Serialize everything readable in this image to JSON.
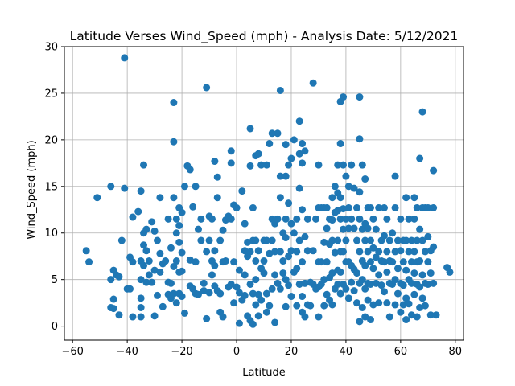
{
  "chart_data": {
    "type": "scatter",
    "title": "Latitude Verses Wind_Speed (mph) - Analysis Date: 5/12/2021",
    "xlabel": "Latitude",
    "ylabel": "Wind_Speed (mph)",
    "xlim": [
      -63,
      83
    ],
    "ylim": [
      -1.5,
      30
    ],
    "xticks": [
      -60,
      -40,
      -20,
      0,
      20,
      40,
      60,
      80
    ],
    "yticks": [
      0,
      5,
      10,
      15,
      20,
      25,
      30
    ],
    "grid": true,
    "marker_color": "#1f77b4",
    "points": [
      [
        -55,
        8.1
      ],
      [
        -54,
        6.9
      ],
      [
        -51,
        13.8
      ],
      [
        -46,
        15
      ],
      [
        -46,
        5
      ],
      [
        -45,
        6
      ],
      [
        -44,
        5.5
      ],
      [
        -45,
        2.9
      ],
      [
        -46,
        2
      ],
      [
        -45,
        1.9
      ],
      [
        -43,
        1.2
      ],
      [
        -43,
        5.3
      ],
      [
        -42,
        9.2
      ],
      [
        -41,
        28.8
      ],
      [
        -41,
        14.8
      ],
      [
        -40,
        4
      ],
      [
        -39,
        4
      ],
      [
        -39,
        7.4
      ],
      [
        -38,
        11.7
      ],
      [
        -38,
        6.9
      ],
      [
        -38,
        1
      ],
      [
        -36,
        12.3
      ],
      [
        -35,
        14.5
      ],
      [
        -35,
        7
      ],
      [
        -35,
        5
      ],
      [
        -35,
        3
      ],
      [
        -35,
        2
      ],
      [
        -35,
        1
      ],
      [
        -34,
        17.3
      ],
      [
        -34,
        10
      ],
      [
        -34,
        8.7
      ],
      [
        -34,
        6.5
      ],
      [
        -33,
        10.4
      ],
      [
        -33,
        4.7
      ],
      [
        -33,
        8.1
      ],
      [
        -32,
        5.5
      ],
      [
        -32,
        7
      ],
      [
        -31,
        11.2
      ],
      [
        -31,
        4.7
      ],
      [
        -30,
        10.2
      ],
      [
        -30,
        6
      ],
      [
        -30,
        1.1
      ],
      [
        -29,
        9.2
      ],
      [
        -29,
        3.3
      ],
      [
        -28,
        13.8
      ],
      [
        -28,
        7.8
      ],
      [
        -28,
        5.8
      ],
      [
        -27,
        6.7
      ],
      [
        -27,
        2.1
      ],
      [
        -26,
        7
      ],
      [
        -25,
        11.5
      ],
      [
        -25,
        4.7
      ],
      [
        -25,
        3.4
      ],
      [
        -24,
        8.4
      ],
      [
        -24,
        4.6
      ],
      [
        -24,
        3
      ],
      [
        -23,
        24
      ],
      [
        -23,
        19.8
      ],
      [
        -23,
        13.8
      ],
      [
        -23,
        6.4
      ],
      [
        -23,
        3.5
      ],
      [
        -22,
        11.5
      ],
      [
        -22,
        10
      ],
      [
        -22,
        7
      ],
      [
        -22,
        2.5
      ],
      [
        -21,
        12.7
      ],
      [
        -21,
        10.8
      ],
      [
        -21,
        9
      ],
      [
        -21,
        5.8
      ],
      [
        -21,
        3.5
      ],
      [
        -20,
        12.2
      ],
      [
        -20,
        7.9
      ],
      [
        -20,
        5.9
      ],
      [
        -20,
        3.2
      ],
      [
        -19,
        1.4
      ],
      [
        -19,
        15
      ],
      [
        -18,
        17.2
      ],
      [
        -17,
        16.8
      ],
      [
        -17,
        7.1
      ],
      [
        -17,
        4.3
      ],
      [
        -16,
        12.8
      ],
      [
        -16,
        4
      ],
      [
        -15,
        15
      ],
      [
        -15,
        6.9
      ],
      [
        -15,
        3.5
      ],
      [
        -14,
        10.4
      ],
      [
        -14,
        3.4
      ],
      [
        -13,
        11.5
      ],
      [
        -13,
        9.2
      ],
      [
        -12,
        4.6
      ],
      [
        -12,
        3.8
      ],
      [
        -11,
        25.6
      ],
      [
        -11,
        8
      ],
      [
        -11,
        0.8
      ],
      [
        -10,
        11.8
      ],
      [
        -10,
        9.2
      ],
      [
        -10,
        3.6
      ],
      [
        -9,
        11.5
      ],
      [
        -9,
        7
      ],
      [
        -9,
        5.5
      ],
      [
        -8,
        17.7
      ],
      [
        -8,
        8.1
      ],
      [
        -8,
        6.5
      ],
      [
        -8,
        4.3
      ],
      [
        -7,
        16
      ],
      [
        -7,
        13.8
      ],
      [
        -7,
        3.8
      ],
      [
        -6,
        9.2
      ],
      [
        -6,
        3.5
      ],
      [
        -6,
        1.5
      ],
      [
        -5,
        10.3
      ],
      [
        -5,
        6.9
      ],
      [
        -5,
        1
      ],
      [
        -4,
        11.4
      ],
      [
        -4,
        7
      ],
      [
        -3,
        11.8
      ],
      [
        -3,
        4.2
      ],
      [
        -2,
        17.5
      ],
      [
        -2,
        18.8
      ],
      [
        -2,
        11.5
      ],
      [
        -2,
        4.5
      ],
      [
        -1,
        13
      ],
      [
        -1,
        6.9
      ],
      [
        -1,
        2.5
      ],
      [
        0,
        12.7
      ],
      [
        0,
        4.2
      ],
      [
        1,
        6
      ],
      [
        1,
        0.3
      ],
      [
        1,
        3.6
      ],
      [
        2,
        14.5
      ],
      [
        2,
        2.8
      ],
      [
        3,
        11
      ],
      [
        3,
        8.1
      ],
      [
        3,
        5.5
      ],
      [
        3,
        3.3
      ],
      [
        4,
        9
      ],
      [
        4,
        7.5
      ],
      [
        4,
        1.1
      ],
      [
        5,
        21.2
      ],
      [
        5,
        17.2
      ],
      [
        5,
        8
      ],
      [
        5,
        4.5
      ],
      [
        5,
        0.6
      ],
      [
        6,
        12.7
      ],
      [
        6,
        9.2
      ],
      [
        6,
        3.5
      ],
      [
        6,
        0.2
      ],
      [
        7,
        18.3
      ],
      [
        7,
        9.2
      ],
      [
        7,
        7
      ],
      [
        7,
        5
      ],
      [
        7,
        2.3
      ],
      [
        8,
        18.5
      ],
      [
        8,
        8.1
      ],
      [
        8,
        3.4
      ],
      [
        8,
        1.1
      ],
      [
        9,
        17.3
      ],
      [
        9,
        6.2
      ],
      [
        9,
        2.8
      ],
      [
        10,
        7
      ],
      [
        10,
        9.2
      ],
      [
        10,
        5.7
      ],
      [
        11,
        17.3
      ],
      [
        11,
        9.2
      ],
      [
        11,
        3.5
      ],
      [
        11,
        1.5
      ],
      [
        12,
        19.6
      ],
      [
        12,
        7.8
      ],
      [
        12,
        2.2
      ],
      [
        13,
        20.7
      ],
      [
        13,
        11.5
      ],
      [
        13,
        9.2
      ],
      [
        13,
        4
      ],
      [
        14,
        11
      ],
      [
        14,
        8
      ],
      [
        14,
        5.5
      ],
      [
        14,
        0.4
      ],
      [
        15,
        20.7
      ],
      [
        15,
        11.5
      ],
      [
        15,
        4.6
      ],
      [
        16,
        25.3
      ],
      [
        16,
        16.1
      ],
      [
        16,
        13.8
      ],
      [
        16,
        8
      ],
      [
        16,
        4
      ],
      [
        17,
        10
      ],
      [
        17,
        7
      ],
      [
        17,
        5.7
      ],
      [
        18,
        19.5
      ],
      [
        18,
        16.1
      ],
      [
        18,
        11.5
      ],
      [
        18,
        9.5
      ],
      [
        18,
        5
      ],
      [
        18,
        2.1
      ],
      [
        19,
        17.3
      ],
      [
        19,
        13.2
      ],
      [
        19,
        7.5
      ],
      [
        19,
        4.4
      ],
      [
        20,
        18
      ],
      [
        20,
        11
      ],
      [
        20,
        8.1
      ],
      [
        20,
        3.2
      ],
      [
        21,
        20
      ],
      [
        21,
        10
      ],
      [
        21,
        5.8
      ],
      [
        22,
        11.5
      ],
      [
        22,
        8
      ],
      [
        22,
        6.2
      ],
      [
        22,
        2.2
      ],
      [
        23,
        22
      ],
      [
        23,
        18.5
      ],
      [
        23,
        14.8
      ],
      [
        23,
        9.2
      ],
      [
        23,
        4.5
      ],
      [
        24,
        19.6
      ],
      [
        24,
        17.5
      ],
      [
        24,
        12.5
      ],
      [
        24,
        6.9
      ],
      [
        24,
        3.2
      ],
      [
        24,
        1.5
      ],
      [
        25,
        18.8
      ],
      [
        25,
        9.6
      ],
      [
        25,
        4.6
      ],
      [
        25,
        1
      ],
      [
        26,
        11.5
      ],
      [
        26,
        8.1
      ],
      [
        26,
        2.3
      ],
      [
        27,
        4.7
      ],
      [
        27,
        2.2
      ],
      [
        28,
        26.1
      ],
      [
        28,
        8.1
      ],
      [
        28,
        4.5
      ],
      [
        29,
        11.5
      ],
      [
        29,
        4
      ],
      [
        30,
        17.3
      ],
      [
        30,
        12.7
      ],
      [
        30,
        6.9
      ],
      [
        30,
        4.2
      ],
      [
        30,
        1
      ],
      [
        31,
        12.7
      ],
      [
        31,
        6.9
      ],
      [
        31,
        4.5
      ],
      [
        32,
        12.7
      ],
      [
        32,
        9
      ],
      [
        32,
        5
      ],
      [
        32,
        2.2
      ],
      [
        33,
        12.7
      ],
      [
        33,
        10.5
      ],
      [
        33,
        6.9
      ],
      [
        33,
        3.4
      ],
      [
        34,
        11.5
      ],
      [
        34,
        8.8
      ],
      [
        34,
        5.2
      ],
      [
        34,
        2.8
      ],
      [
        35,
        13.8
      ],
      [
        35,
        11.4
      ],
      [
        35,
        9.2
      ],
      [
        35,
        5.7
      ],
      [
        35,
        2.3
      ],
      [
        36,
        15
      ],
      [
        36,
        12.2
      ],
      [
        36,
        7.9
      ],
      [
        36,
        4
      ],
      [
        37,
        17.3
      ],
      [
        37,
        14.3
      ],
      [
        37,
        12.4
      ],
      [
        37,
        9.2
      ],
      [
        37,
        6
      ],
      [
        37,
        4.5
      ],
      [
        38,
        24.1
      ],
      [
        38,
        19.6
      ],
      [
        38,
        13.8
      ],
      [
        38,
        11.5
      ],
      [
        38,
        8
      ],
      [
        38,
        5.8
      ],
      [
        38,
        3.5
      ],
      [
        39,
        24.6
      ],
      [
        39,
        17.3
      ],
      [
        39,
        12.6
      ],
      [
        39,
        10.4
      ],
      [
        39,
        8
      ],
      [
        39,
        4.5
      ],
      [
        40,
        16.1
      ],
      [
        40,
        11.5
      ],
      [
        40,
        9.2
      ],
      [
        40,
        6.9
      ],
      [
        40,
        4
      ],
      [
        41,
        15
      ],
      [
        41,
        12.7
      ],
      [
        41,
        10.5
      ],
      [
        41,
        6.9
      ],
      [
        41,
        3
      ],
      [
        42,
        17.3
      ],
      [
        42,
        11.5
      ],
      [
        42,
        6.5
      ],
      [
        42,
        4.7
      ],
      [
        43,
        14.8
      ],
      [
        43,
        10.5
      ],
      [
        43,
        6.1
      ],
      [
        43,
        3.8
      ],
      [
        44,
        12.7
      ],
      [
        44,
        9.2
      ],
      [
        44,
        5.7
      ],
      [
        44,
        2.5
      ],
      [
        45,
        24.6
      ],
      [
        45,
        20.1
      ],
      [
        45,
        14.4
      ],
      [
        45,
        11.5
      ],
      [
        45,
        8
      ],
      [
        45,
        4.6
      ],
      [
        45,
        0.5
      ],
      [
        46,
        17.3
      ],
      [
        46,
        10.4
      ],
      [
        46,
        7
      ],
      [
        46,
        5
      ],
      [
        46,
        2
      ],
      [
        47,
        15.8
      ],
      [
        47,
        11
      ],
      [
        47,
        9.2
      ],
      [
        47,
        6.5
      ],
      [
        47,
        4
      ],
      [
        47,
        1
      ],
      [
        48,
        12.7
      ],
      [
        48,
        10.5
      ],
      [
        48,
        8
      ],
      [
        48,
        4.6
      ],
      [
        48,
        2.8
      ],
      [
        49,
        12.7
      ],
      [
        49,
        9.2
      ],
      [
        49,
        6.9
      ],
      [
        49,
        4.5
      ],
      [
        49,
        0.7
      ],
      [
        50,
        11.5
      ],
      [
        50,
        8.4
      ],
      [
        50,
        6.2
      ],
      [
        50,
        2.3
      ],
      [
        51,
        10.4
      ],
      [
        51,
        7.4
      ],
      [
        51,
        4.6
      ],
      [
        52,
        12.7
      ],
      [
        52,
        8
      ],
      [
        52,
        5.5
      ],
      [
        52,
        2.5
      ],
      [
        53,
        9.2
      ],
      [
        53,
        7
      ],
      [
        53,
        4.4
      ],
      [
        54,
        12.7
      ],
      [
        54,
        9.7
      ],
      [
        54,
        6.9
      ],
      [
        54,
        3.7
      ],
      [
        55,
        11.5
      ],
      [
        55,
        8
      ],
      [
        55,
        5.8
      ],
      [
        55,
        2.5
      ],
      [
        56,
        9.2
      ],
      [
        56,
        7
      ],
      [
        56,
        4.6
      ],
      [
        56,
        1
      ],
      [
        57,
        10
      ],
      [
        57,
        6.9
      ],
      [
        57,
        4.5
      ],
      [
        58,
        16.1
      ],
      [
        58,
        12.7
      ],
      [
        58,
        8
      ],
      [
        58,
        5
      ],
      [
        58,
        2.3
      ],
      [
        59,
        9.2
      ],
      [
        59,
        6.2
      ],
      [
        59,
        3.5
      ],
      [
        60,
        11.5
      ],
      [
        60,
        8.1
      ],
      [
        60,
        4.6
      ],
      [
        60,
        1.5
      ],
      [
        61,
        9.2
      ],
      [
        61,
        6.9
      ],
      [
        61,
        4.4
      ],
      [
        61,
        2.3
      ],
      [
        62,
        13.8
      ],
      [
        62,
        9.2
      ],
      [
        62,
        6
      ],
      [
        62,
        3
      ],
      [
        62,
        0.7
      ],
      [
        63,
        11.5
      ],
      [
        63,
        8
      ],
      [
        63,
        5
      ],
      [
        63,
        2.4
      ],
      [
        64,
        9.2
      ],
      [
        64,
        6.9
      ],
      [
        64,
        4.6
      ],
      [
        64,
        1.2
      ],
      [
        65,
        13.8
      ],
      [
        65,
        11.5
      ],
      [
        65,
        8
      ],
      [
        65,
        5.7
      ],
      [
        65,
        3.4
      ],
      [
        66,
        12.7
      ],
      [
        66,
        9.2
      ],
      [
        66,
        6.9
      ],
      [
        66,
        4.5
      ],
      [
        66,
        1
      ],
      [
        67,
        18
      ],
      [
        67,
        10.4
      ],
      [
        67,
        7
      ],
      [
        67,
        4.2
      ],
      [
        67,
        2
      ],
      [
        68,
        23
      ],
      [
        68,
        12.7
      ],
      [
        68,
        9.2
      ],
      [
        68,
        5.5
      ],
      [
        68,
        3
      ],
      [
        69,
        12.7
      ],
      [
        69,
        8
      ],
      [
        69,
        4.6
      ],
      [
        69,
        2.2
      ],
      [
        70,
        12.7
      ],
      [
        70,
        9.6
      ],
      [
        70,
        6.9
      ],
      [
        70,
        4.5
      ],
      [
        71,
        8.1
      ],
      [
        71,
        5.7
      ],
      [
        71,
        1.2
      ],
      [
        72,
        16.7
      ],
      [
        72,
        12.7
      ],
      [
        72,
        8.5
      ],
      [
        72,
        4.6
      ],
      [
        73,
        1.2
      ],
      [
        77,
        6.3
      ],
      [
        78,
        5.8
      ]
    ]
  }
}
